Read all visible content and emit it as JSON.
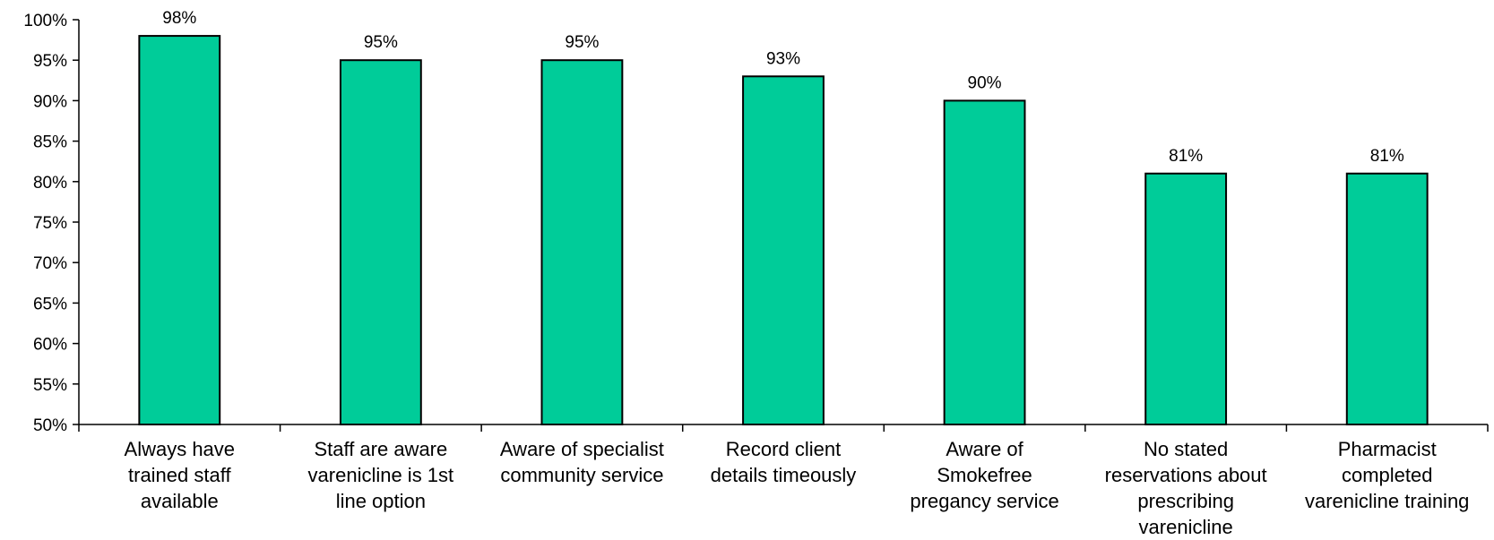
{
  "chart_data": {
    "type": "bar",
    "title": "",
    "xlabel": "",
    "ylabel": "",
    "ylim": [
      0.5,
      1.0
    ],
    "y_ticks": [
      "50%",
      "55%",
      "60%",
      "65%",
      "70%",
      "75%",
      "80%",
      "85%",
      "90%",
      "95%",
      "100%"
    ],
    "grid": false,
    "categories": [
      [
        "Always have",
        "trained staff",
        "available"
      ],
      [
        "Staff are aware",
        "varenicline is 1st",
        "line option"
      ],
      [
        "Aware of specialist",
        "community service"
      ],
      [
        "Record client",
        "details timeously"
      ],
      [
        "Aware of",
        "Smokefree",
        "pregancy service"
      ],
      [
        "No stated",
        "reservations about",
        "prescribing",
        "varenicline"
      ],
      [
        "Pharmacist",
        "completed",
        "varenicline training"
      ]
    ],
    "values": [
      0.98,
      0.95,
      0.95,
      0.93,
      0.9,
      0.81,
      0.81
    ],
    "data_labels": [
      "98%",
      "95%",
      "95%",
      "93%",
      "90%",
      "81%",
      "81%"
    ],
    "bar_color": "#00CC99",
    "bar_stroke": "#000000"
  }
}
